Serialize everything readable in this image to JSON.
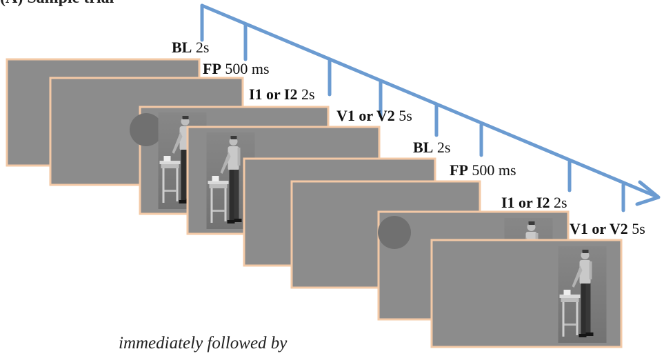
{
  "title_fragment": "(A) Sample trial",
  "timeline": {
    "events": [
      {
        "code": "BL",
        "duration": "2s"
      },
      {
        "code": "FP",
        "duration": "500 ms"
      },
      {
        "code": "I1 or I2",
        "duration": "2s"
      },
      {
        "code": "V1 or V2",
        "duration": "5s"
      },
      {
        "code": "BL",
        "duration": "2s"
      },
      {
        "code": "FP",
        "duration": "500 ms"
      },
      {
        "code": "I1 or I2",
        "duration": "2s"
      },
      {
        "code": "V1 or V2",
        "duration": "5s"
      }
    ]
  },
  "caption": "immediately followed by",
  "colors": {
    "arrow": "#6b9bd1",
    "screen_fill": "#8c8c8c",
    "screen_border": "#f3c9a6",
    "fixation_dot": "#707070"
  }
}
